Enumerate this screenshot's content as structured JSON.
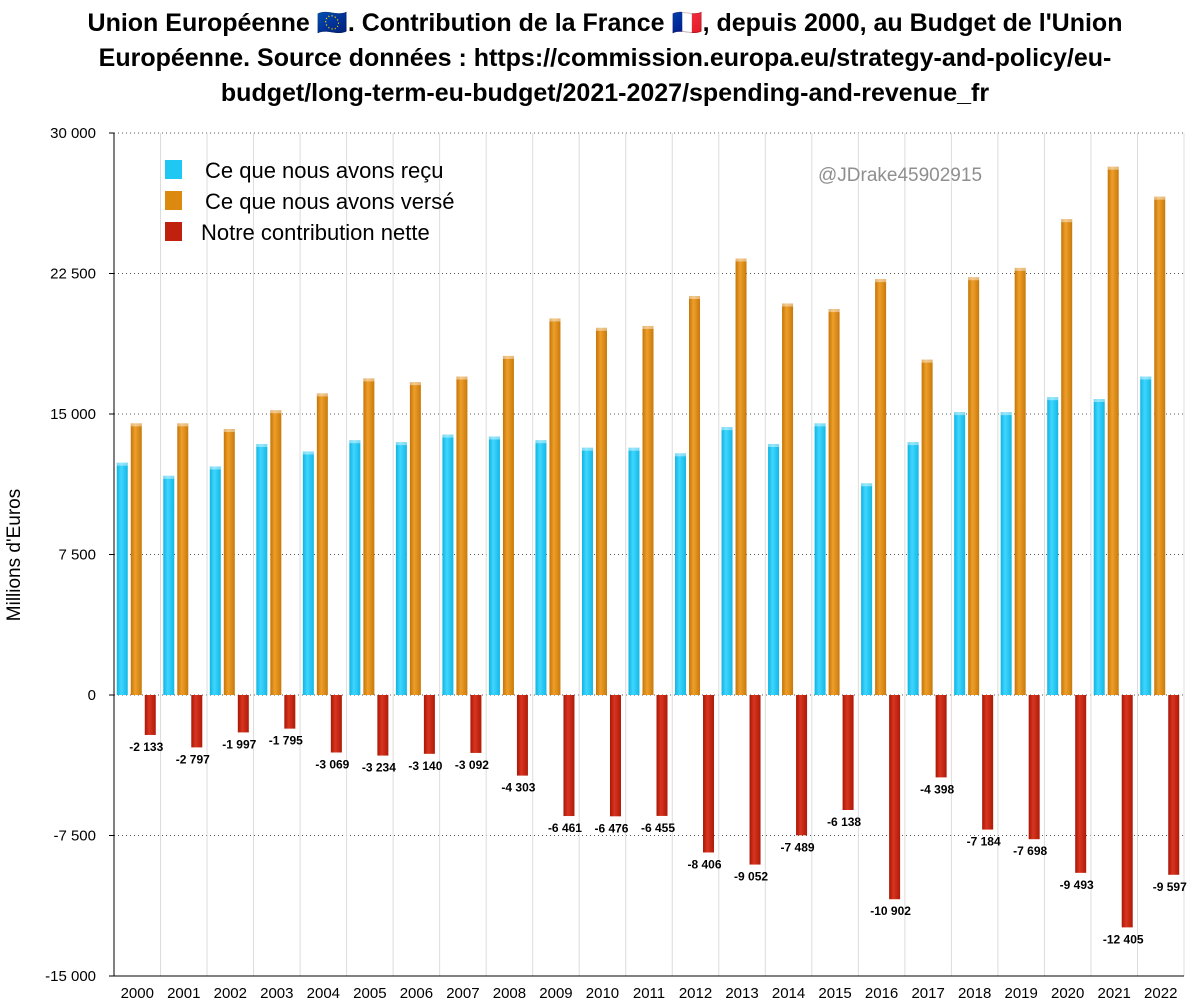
{
  "chart_data": {
    "type": "bar",
    "title": "Union Européenne 🇪🇺. Contribution de la France 🇫🇷, depuis 2000, au Budget de l'Union Européenne. Source données : https://commission.europa.eu/strategy-and-policy/eu-budget/long-term-eu-budget/2021-2027/spending-and-revenue_fr",
    "xlabel": "",
    "ylabel": "Millions d'Euros",
    "ylim": [
      -15000,
      30000
    ],
    "yticks": [
      30000,
      22500,
      15000,
      7500,
      0,
      -7500,
      -15000
    ],
    "ytick_labels": [
      "30 000",
      "22 500",
      "15 000",
      "7 500",
      "0",
      "-7 500",
      "-15 000"
    ],
    "grid": true,
    "legend_position": "top-left",
    "watermark": "@JDrake45902915",
    "categories": [
      "2000",
      "2001",
      "2002",
      "2003",
      "2004",
      "2005",
      "2006",
      "2007",
      "2008",
      "2009",
      "2010",
      "2011",
      "2012",
      "2013",
      "2014",
      "2015",
      "2016",
      "2017",
      "2018",
      "2019",
      "2020",
      "2021",
      "2022"
    ],
    "series": [
      {
        "name": "Ce que nous avons reçu",
        "color": "#1ec8f2",
        "values": [
          12400,
          11700,
          12200,
          13400,
          13000,
          13600,
          13500,
          13900,
          13800,
          13600,
          13200,
          13200,
          12900,
          14300,
          13400,
          14500,
          11300,
          13500,
          15100,
          15100,
          15900,
          15800,
          17000
        ]
      },
      {
        "name": "Ce que nous avons versé",
        "color": "#db8a0f",
        "values": [
          14500,
          14500,
          14200,
          15200,
          16100,
          16900,
          16700,
          17000,
          18100,
          20100,
          19600,
          19700,
          21300,
          23300,
          20900,
          20600,
          22200,
          17900,
          22300,
          22800,
          25400,
          28200,
          26600
        ]
      },
      {
        "name": "Notre contribution nette",
        "color": "#c0210f",
        "values": [
          -2133,
          -2797,
          -1997,
          -1795,
          -3069,
          -3234,
          -3140,
          -3092,
          -4303,
          -6461,
          -6476,
          -6455,
          -8406,
          -9052,
          -7489,
          -6138,
          -10902,
          -4398,
          -7184,
          -7698,
          -9493,
          -12405,
          -9597
        ],
        "labels": [
          "-2 133",
          "-2 797",
          "-1 997",
          "-1 795",
          "-3 069",
          "-3 234",
          "-3 140",
          "-3 092",
          "-4 303",
          "-6 461",
          "-6 476",
          "-6 455",
          "-8 406",
          "-9 052",
          "-7 489",
          "-6 138",
          "-10 902",
          "-4 398",
          "-7 184",
          "-7 698",
          "-9 493",
          "-12 405",
          "-9 597"
        ]
      }
    ]
  }
}
